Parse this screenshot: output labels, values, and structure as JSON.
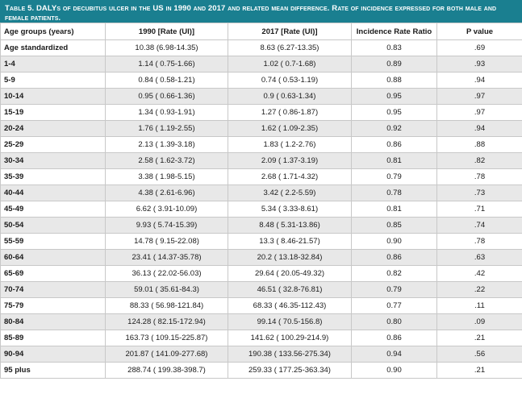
{
  "caption": "Table 5. DALYs of decubitus ulcer in the US in 1990 and 2017 and related mean difference. Rate of incidence expressed for both male and female patients.",
  "headers": [
    "Age groups (years)",
    "1990 [Rate (UI)]",
    "2017 [Rate (UI)]",
    "Incidence Rate Ratio",
    "P value"
  ],
  "rows": [
    [
      "Age standardized",
      "10.38 (6.98-14.35)",
      "8.63 (6.27-13.35)",
      "0.83",
      ".69"
    ],
    [
      "1-4",
      "1.14 ( 0.75-1.66)",
      "1.02 ( 0.7-1.68)",
      "0.89",
      ".93"
    ],
    [
      "5-9",
      "0.84 ( 0.58-1.21)",
      "0.74 ( 0.53-1.19)",
      "0.88",
      ".94"
    ],
    [
      "10-14",
      "0.95 ( 0.66-1.36)",
      "0.9 ( 0.63-1.34)",
      "0.95",
      ".97"
    ],
    [
      "15-19",
      "1.34 ( 0.93-1.91)",
      "1.27 ( 0.86-1.87)",
      "0.95",
      ".97"
    ],
    [
      "20-24",
      "1.76 ( 1.19-2.55)",
      "1.62 ( 1.09-2.35)",
      "0.92",
      ".94"
    ],
    [
      "25-29",
      "2.13 ( 1.39-3.18)",
      "1.83 ( 1.2-2.76)",
      "0.86",
      ".88"
    ],
    [
      "30-34",
      "2.58 ( 1.62-3.72)",
      "2.09 ( 1.37-3.19)",
      "0.81",
      ".82"
    ],
    [
      "35-39",
      "3.38 ( 1.98-5.15)",
      "2.68 ( 1.71-4.32)",
      "0.79",
      ".78"
    ],
    [
      "40-44",
      "4.38 ( 2.61-6.96)",
      "3.42 ( 2.2-5.59)",
      "0.78",
      ".73"
    ],
    [
      "45-49",
      "6.62 ( 3.91-10.09)",
      "5.34 ( 3.33-8.61)",
      "0.81",
      ".71"
    ],
    [
      "50-54",
      "9.93 ( 5.74-15.39)",
      "8.48 ( 5.31-13.86)",
      "0.85",
      ".74"
    ],
    [
      "55-59",
      "14.78 ( 9.15-22.08)",
      "13.3 ( 8.46-21.57)",
      "0.90",
      ".78"
    ],
    [
      "60-64",
      "23.41 ( 14.37-35.78)",
      "20.2 ( 13.18-32.84)",
      "0.86",
      ".63"
    ],
    [
      "65-69",
      "36.13 ( 22.02-56.03)",
      "29.64 ( 20.05-49.32)",
      "0.82",
      ".42"
    ],
    [
      "70-74",
      "59.01 ( 35.61-84.3)",
      "46.51 ( 32.8-76.81)",
      "0.79",
      ".22"
    ],
    [
      "75-79",
      "88.33 ( 56.98-121.84)",
      "68.33 ( 46.35-112.43)",
      "0.77",
      ".11"
    ],
    [
      "80-84",
      "124.28 ( 82.15-172.94)",
      "99.14 ( 70.5-156.8)",
      "0.80",
      ".09"
    ],
    [
      "85-89",
      "163.73 ( 109.15-225.87)",
      "141.62 ( 100.29-214.9)",
      "0.86",
      ".21"
    ],
    [
      "90-94",
      "201.87 ( 141.09-277.68)",
      "190.38 ( 133.56-275.34)",
      "0.94",
      ".56"
    ],
    [
      "95 plus",
      "288.74 ( 199.38-398.7)",
      "259.33 ( 177.25-363.34)",
      "0.90",
      ".21"
    ]
  ]
}
